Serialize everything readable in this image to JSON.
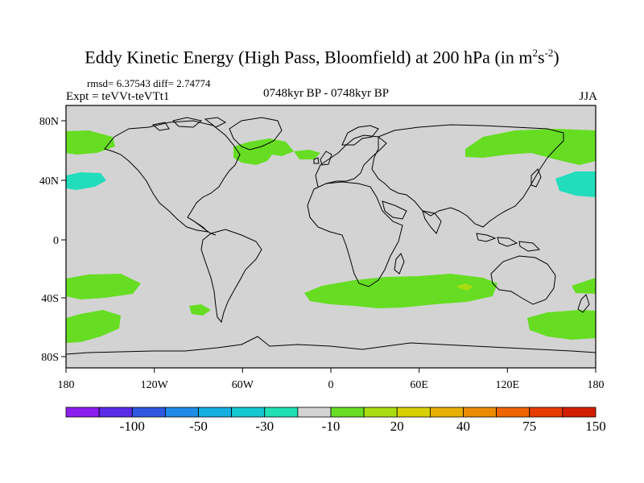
{
  "title": {
    "main": "Eddy Kinetic Energy (High Pass, Bloomfield) at 200 hPa (in m",
    "sup1": "2",
    "mid": "s",
    "sup2": "-2",
    "end": ")"
  },
  "stats": "rmsd= 6.37543 diff= 2.74774",
  "expt": "Expt = teVVt-teVTt1",
  "period": "0748kyr BP - 0748kyr BP",
  "season": "JJA",
  "map": {
    "lon_ticks": [
      "180",
      "120W",
      "60W",
      "0",
      "60E",
      "120E",
      "180"
    ],
    "lat_ticks": [
      "80N",
      "40N",
      "0",
      "40S",
      "80S"
    ],
    "ocean_color": "#d3d3d3",
    "coast_color": "#000000"
  },
  "colorbar": {
    "colors": [
      "#8c1eee",
      "#5a2ce6",
      "#2f58e0",
      "#1e8be6",
      "#14aee0",
      "#14c8d2",
      "#1ee0b4",
      "#d3d3d3",
      "#66dd22",
      "#aadd11",
      "#d8d000",
      "#e8b000",
      "#eb8c00",
      "#ee6400",
      "#e63c00",
      "#d21e00"
    ],
    "labels": [
      "-100",
      "-50",
      "-30",
      "-10",
      "20",
      "40",
      "75",
      "150"
    ]
  },
  "legend_colors": {
    "green": "#66dd22",
    "cyan": "#22ddbb",
    "yellowgreen": "#aadd11"
  }
}
